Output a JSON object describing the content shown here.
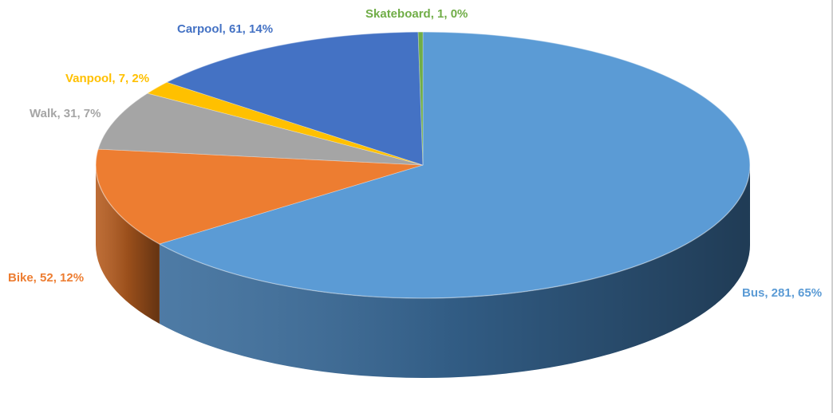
{
  "chart_data": {
    "type": "pie",
    "variant": "3d",
    "title": "",
    "start_angle_deg": 0,
    "direction": "clockwise",
    "slices": [
      {
        "name": "Bus",
        "value": 281,
        "percent": "65%",
        "label": "Bus, 281, 65%",
        "color": "#5b9bd5",
        "side_color": "#3a6c9b",
        "label_color": "#5b9bd5"
      },
      {
        "name": "Bike",
        "value": 52,
        "percent": "12%",
        "label": "Bike, 52, 12%",
        "color": "#ed7d31",
        "side_color": "#b65d20",
        "label_color": "#ed7d31"
      },
      {
        "name": "Walk",
        "value": 31,
        "percent": "7%",
        "label": "Walk, 31, 7%",
        "color": "#a5a5a5",
        "side_color": "#7a7a7a",
        "label_color": "#a5a5a5"
      },
      {
        "name": "Vanpool",
        "value": 7,
        "percent": "2%",
        "label": "Vanpool, 7, 2%",
        "color": "#ffc000",
        "side_color": "#c49300",
        "label_color": "#ffc000"
      },
      {
        "name": "Carpool",
        "value": 61,
        "percent": "14%",
        "label": "Carpool, 61, 14%",
        "color": "#4472c4",
        "side_color": "#2f5190",
        "label_color": "#4472c4"
      },
      {
        "name": "Skateboard",
        "value": 1,
        "percent": "0%",
        "label": "Skateboard, 1, 0%",
        "color": "#70ad47",
        "side_color": "#4f7d32",
        "label_color": "#70ad47"
      }
    ]
  }
}
